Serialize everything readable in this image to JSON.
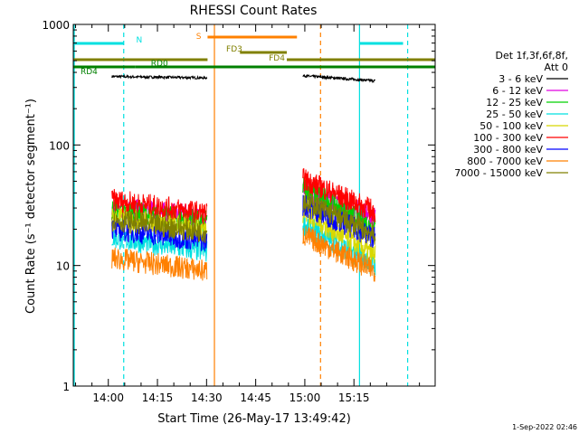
{
  "chart_data": {
    "type": "line",
    "title": "RHESSI Count Rates",
    "xlabel": "Start Time (26-May-17 13:49:42)",
    "ylabel": "Count Rate (s⁻¹ detector segment⁻¹)",
    "yscale": "log",
    "ylim": [
      1,
      1000
    ],
    "xlim_minutes": [
      -10.7,
      99.8
    ],
    "x_ticks": [
      {
        "label": "14:00",
        "minutes": 0
      },
      {
        "label": "14:15",
        "minutes": 15
      },
      {
        "label": "14:30",
        "minutes": 30
      },
      {
        "label": "14:45",
        "minutes": 45
      },
      {
        "label": "15:00",
        "minutes": 60
      },
      {
        "label": "15:15",
        "minutes": 75
      }
    ],
    "y_ticks": [
      {
        "label": "1",
        "value": 1
      },
      {
        "label": "10",
        "value": 10
      },
      {
        "label": "100",
        "value": 100
      },
      {
        "label": "1000",
        "value": 1000
      }
    ],
    "legend_header": [
      "Det 1f,3f,6f,8f,",
      "Att 0"
    ],
    "legend_placement": "right",
    "data_gaps_minutes": [
      [
        30.3,
        59.2
      ]
    ],
    "series": [
      {
        "name": "3 - 6 keV",
        "color": "#000000",
        "seg1": [
          370,
          360
        ],
        "seg2": [
          375,
          340
        ]
      },
      {
        "name": "6 - 12 keV",
        "color": "#e000e0",
        "seg1": [
          30,
          25
        ],
        "seg2": [
          42,
          25
        ]
      },
      {
        "name": "12 - 25 keV",
        "color": "#00d000",
        "seg1": [
          29,
          23
        ],
        "seg2": [
          46,
          20
        ]
      },
      {
        "name": "25 - 50 keV",
        "color": "#00e0e0",
        "seg1": [
          17,
          13
        ],
        "seg2": [
          22,
          10
        ]
      },
      {
        "name": "50 - 100 keV",
        "color": "#d8d800",
        "seg1": [
          25,
          20
        ],
        "seg2": [
          28,
          12
        ]
      },
      {
        "name": "100 - 300 keV",
        "color": "#ff0000",
        "seg1": [
          35,
          27
        ],
        "seg2": [
          52,
          28
        ]
      },
      {
        "name": "300 - 800 keV",
        "color": "#0000ff",
        "seg1": [
          20,
          16
        ],
        "seg2": [
          32,
          17
        ]
      },
      {
        "name": "800 - 7000 keV",
        "color": "#ff8000",
        "seg1": [
          11.5,
          9
        ],
        "seg2": [
          18,
          9
        ]
      },
      {
        "name": "7000 - 15000 keV",
        "color": "#808000",
        "seg1": [
          24,
          19
        ],
        "seg2": [
          35,
          18
        ]
      }
    ],
    "annotations": [
      {
        "label": "N",
        "color": "#00e0e0",
        "ranges": [
          [
            -10.7,
            4.7
          ],
          [
            76.8,
            90
          ]
        ]
      },
      {
        "label": "S",
        "color": "#ff8000",
        "ranges": [
          [
            30.3,
            57.6
          ]
        ]
      },
      {
        "label": "FD3",
        "color": "#808000",
        "ranges": [
          [
            40.2,
            54.5
          ]
        ]
      },
      {
        "label": "FD4",
        "color": "#808000",
        "ranges": [
          [
            -10.7,
            30.3
          ],
          [
            54.5,
            99.8
          ]
        ]
      },
      {
        "label": "RD0",
        "color": "#008000",
        "ranges": [
          [
            8.3,
            99.8
          ]
        ]
      },
      {
        "label": "RD4",
        "color": "#008000",
        "ranges": [
          [
            -10.7,
            8.3
          ]
        ]
      }
    ],
    "vertical_markers": [
      {
        "minutes": -10.4,
        "color": "#00e0e0",
        "style": "solid"
      },
      {
        "minutes": 4.7,
        "color": "#00e0e0",
        "style": "dashed"
      },
      {
        "minutes": 32.4,
        "color": "#ff8000",
        "style": "solid"
      },
      {
        "minutes": 64.8,
        "color": "#ff8000",
        "style": "dashed"
      },
      {
        "minutes": 76.7,
        "color": "#00e0e0",
        "style": "solid"
      },
      {
        "minutes": 91.4,
        "color": "#00e0e0",
        "style": "dashed"
      }
    ]
  },
  "footer_timestamp": "1-Sep-2022 02:46"
}
